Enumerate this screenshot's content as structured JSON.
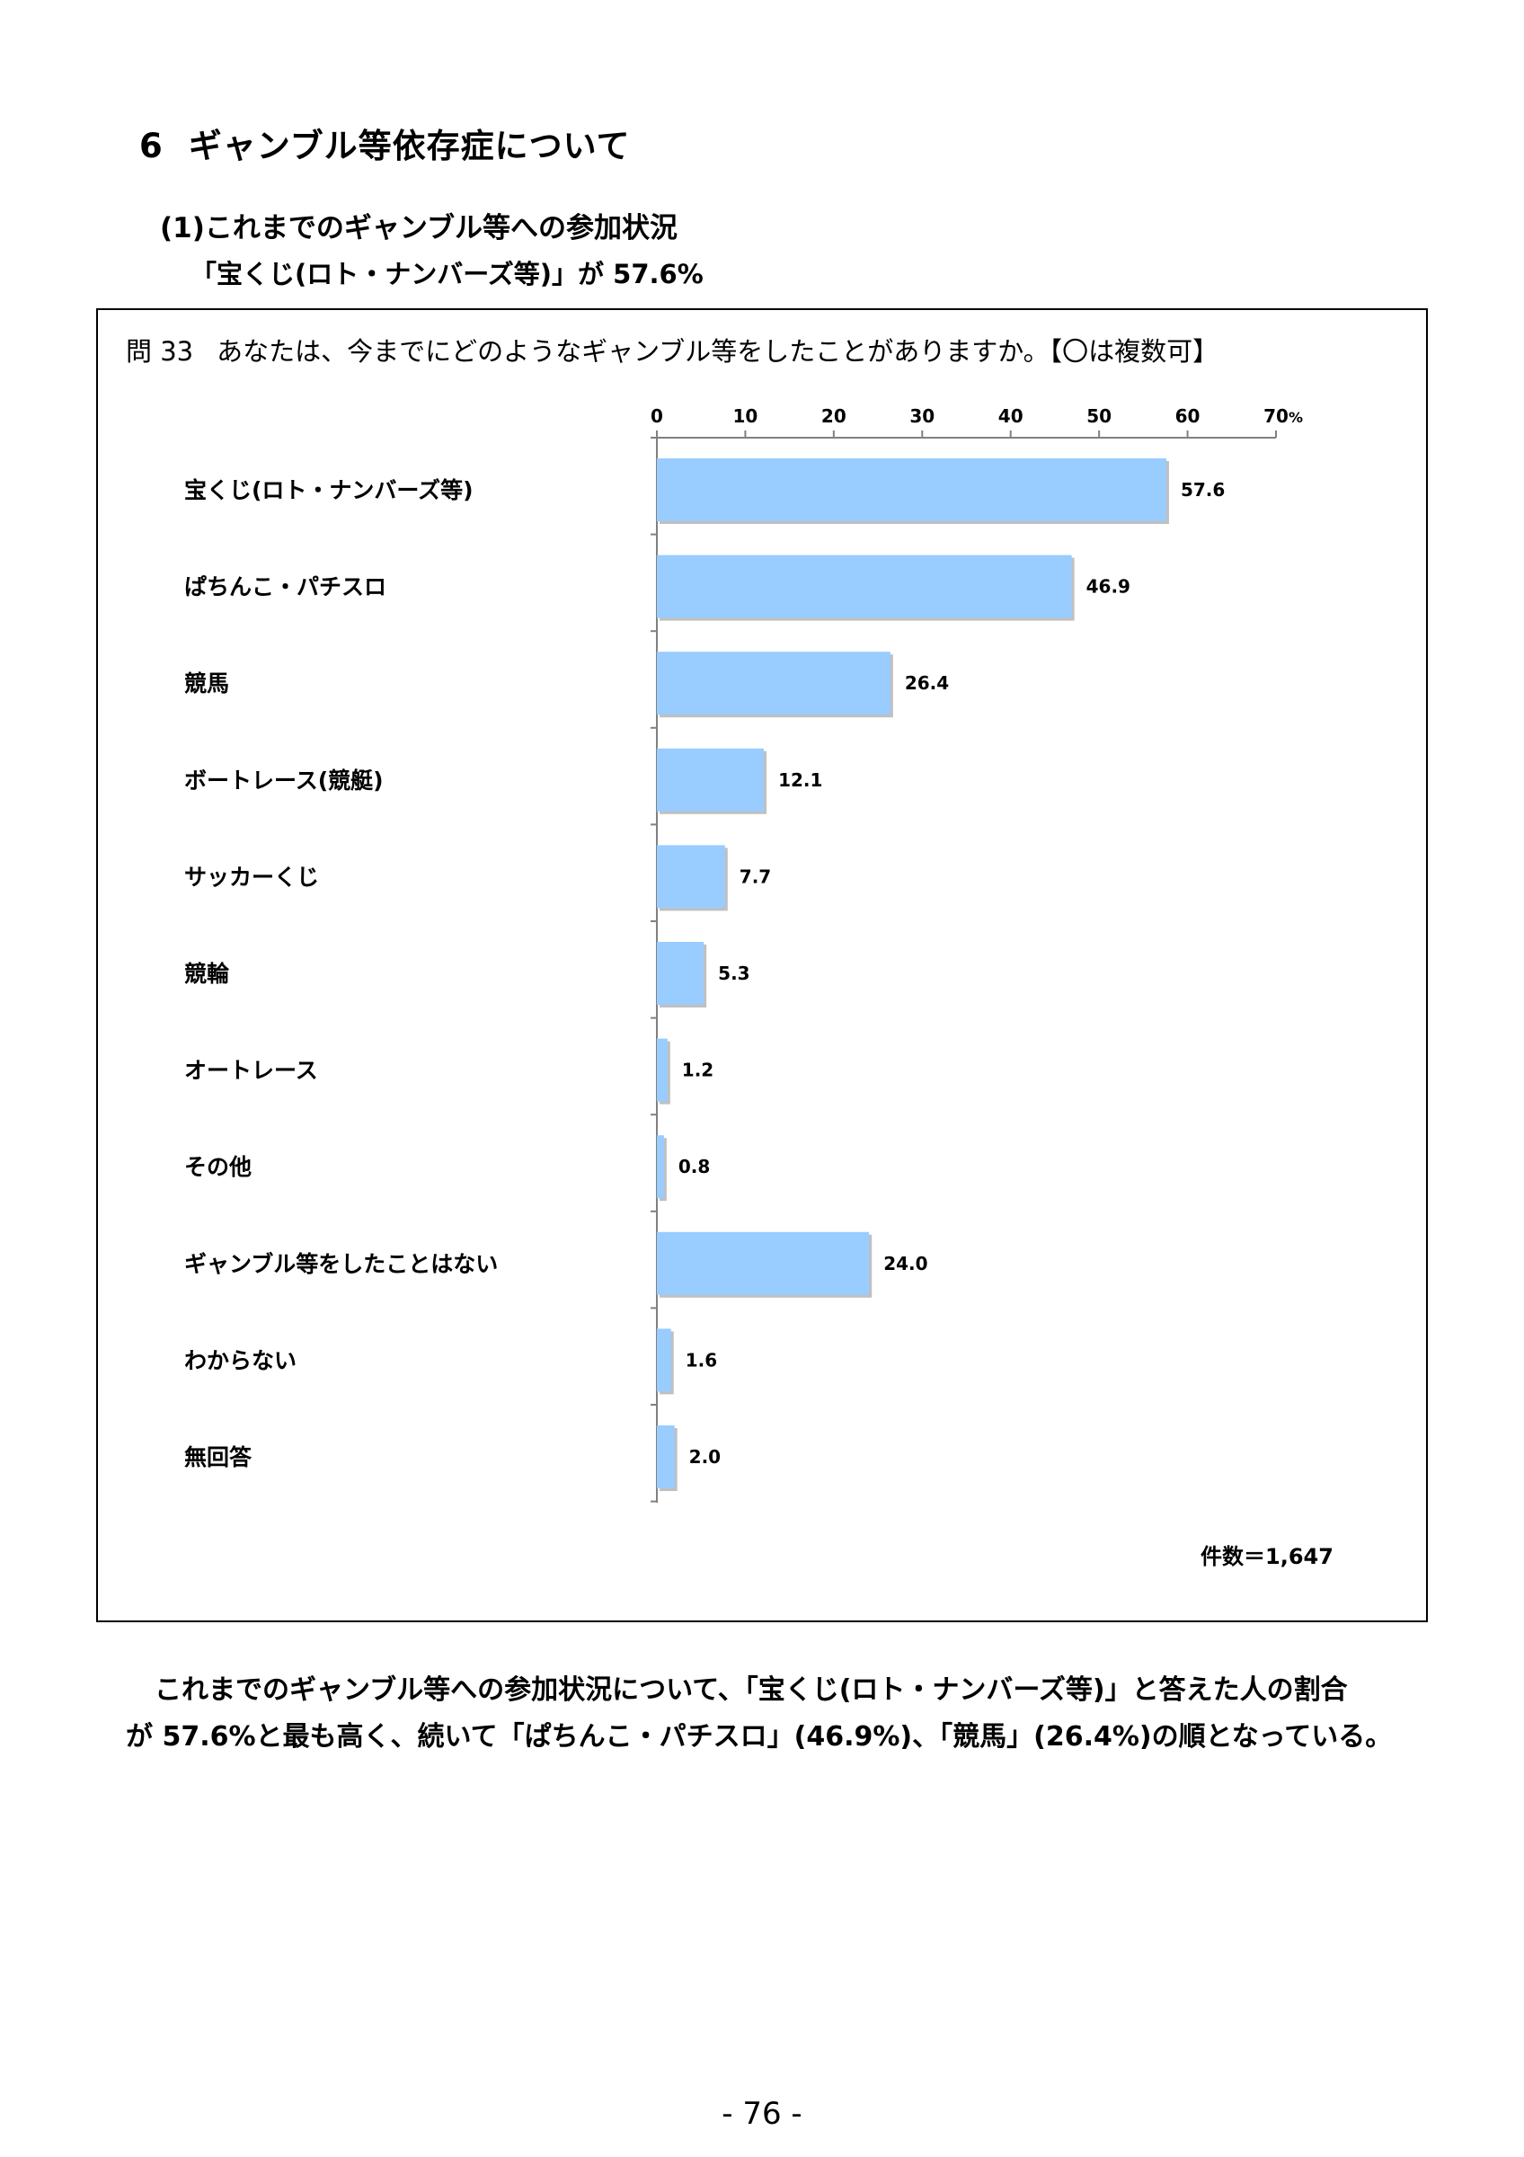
{
  "section": {
    "number": "6",
    "title": "ギャンブル等依存症について"
  },
  "subsection": {
    "title": "(1)これまでのギャンブル等への参加状況",
    "headline": "「宝くじ(ロト・ナンバーズ等)」が 57.6%"
  },
  "question": {
    "number": "問 33",
    "text": "あなたは、今までにどのようなギャンブル等をしたことがありますか。【〇は複数可】"
  },
  "sample_size": "件数＝1,647",
  "summary": {
    "line1": "これまでのギャンブル等への参加状況について、「宝くじ(ロト・ナンバーズ等)」と答えた人の割合",
    "line2": "が 57.6%と最も高く、続いて「ぱちんこ・パチスロ」(46.9%)、「競馬」(26.4%)の順となっている。"
  },
  "page_number": "- 76 -",
  "colors": {
    "bar": "#99ccff",
    "bar_shadow": "#8c8c8c",
    "axis": "#808080"
  },
  "chart_data": {
    "type": "bar",
    "orientation": "horizontal",
    "categories": [
      "宝くじ(ロト・ナンバーズ等)",
      "ぱちんこ・パチスロ",
      "競馬",
      "ボートレース(競艇)",
      "サッカーくじ",
      "競輪",
      "オートレース",
      "その他",
      "ギャンブル等をしたことはない",
      "わからない",
      "無回答"
    ],
    "values": [
      57.6,
      46.9,
      26.4,
      12.1,
      7.7,
      5.3,
      1.2,
      0.8,
      24.0,
      1.6,
      2.0
    ],
    "value_labels": [
      "57.6",
      "46.9",
      "26.4",
      "12.1",
      "7.7",
      "5.3",
      "1.2",
      "0.8",
      "24.0",
      "1.6",
      "2.0"
    ],
    "x_ticks": [
      "0",
      "10",
      "20",
      "30",
      "40",
      "50",
      "60",
      "70"
    ],
    "x_unit": "%",
    "xlim": [
      0,
      70
    ],
    "axis_position": "top",
    "grid": false,
    "legend": "none"
  }
}
